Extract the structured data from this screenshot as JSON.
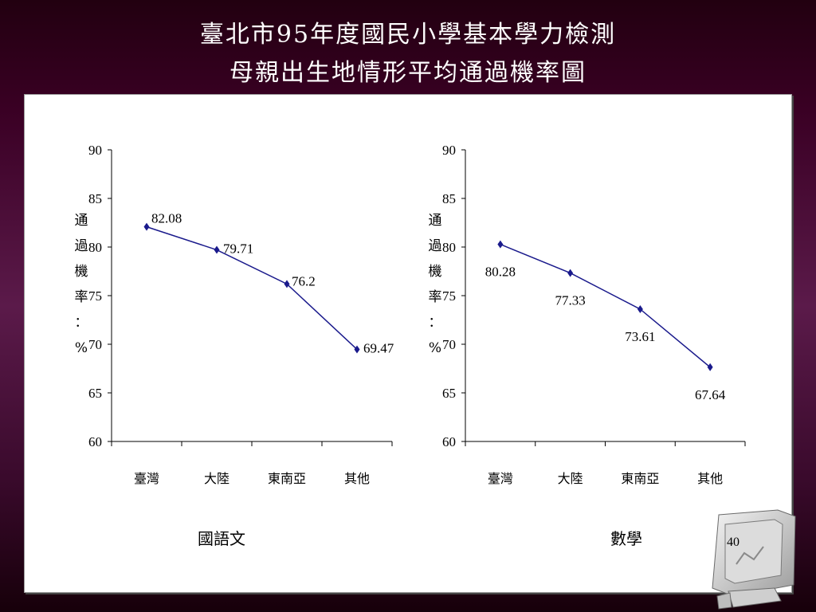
{
  "slide": {
    "title_line1": "臺北市95年度國民小學基本學力檢測",
    "title_line2": "母親出生地情形平均通過機率圖",
    "page_number": "40"
  },
  "chart_data": [
    {
      "type": "line",
      "subject": "國語文",
      "categories": [
        "臺灣",
        "大陸",
        "東南亞",
        "其他"
      ],
      "values": [
        82.08,
        79.71,
        76.2,
        69.47
      ],
      "value_labels": [
        "82.08",
        "79.71",
        "76.2",
        "69.47"
      ],
      "ylabel": "通過機率：%",
      "ylim": [
        60,
        90
      ],
      "yticks": [
        60,
        65,
        70,
        75,
        80,
        85,
        90
      ],
      "grid": false,
      "line_color": "#1a1a8c"
    },
    {
      "type": "line",
      "subject": "數學",
      "categories": [
        "臺灣",
        "大陸",
        "東南亞",
        "其他"
      ],
      "values": [
        80.28,
        77.33,
        73.61,
        67.64
      ],
      "value_labels": [
        "80.28",
        "77.33",
        "73.61",
        "67.64"
      ],
      "ylabel": "通過機率：%",
      "ylim": [
        60,
        90
      ],
      "yticks": [
        60,
        65,
        70,
        75,
        80,
        85,
        90
      ],
      "grid": false,
      "line_color": "#1a1a8c"
    }
  ]
}
